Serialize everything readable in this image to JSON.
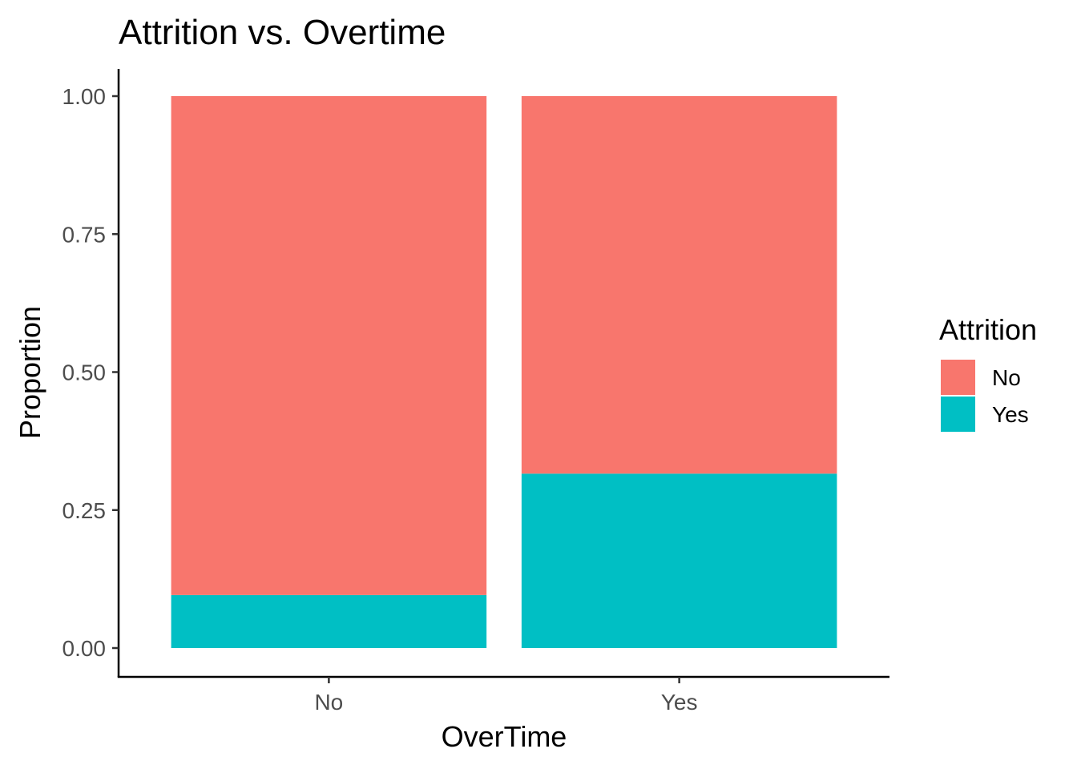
{
  "chart_data": {
    "type": "bar",
    "stacked": true,
    "title": "Attrition vs. Overtime",
    "xlabel": "OverTime",
    "ylabel": "Proportion",
    "categories": [
      "No",
      "Yes"
    ],
    "series": [
      {
        "name": "Yes",
        "values": [
          0.096,
          0.316
        ],
        "color": "#00BFC4"
      },
      {
        "name": "No",
        "values": [
          0.904,
          0.684
        ],
        "color": "#F8766D"
      }
    ],
    "ylim": [
      0,
      1
    ],
    "yticks": [
      0,
      0.25,
      0.5,
      0.75,
      1
    ],
    "ytick_labels": [
      "0.00",
      "0.25",
      "0.50",
      "0.75",
      "1.00"
    ],
    "grid": false,
    "legend": {
      "title": "Attrition",
      "placement": "right",
      "entries": [
        {
          "label": "No",
          "color": "#F8766D"
        },
        {
          "label": "Yes",
          "color": "#00BFC4"
        }
      ]
    }
  }
}
